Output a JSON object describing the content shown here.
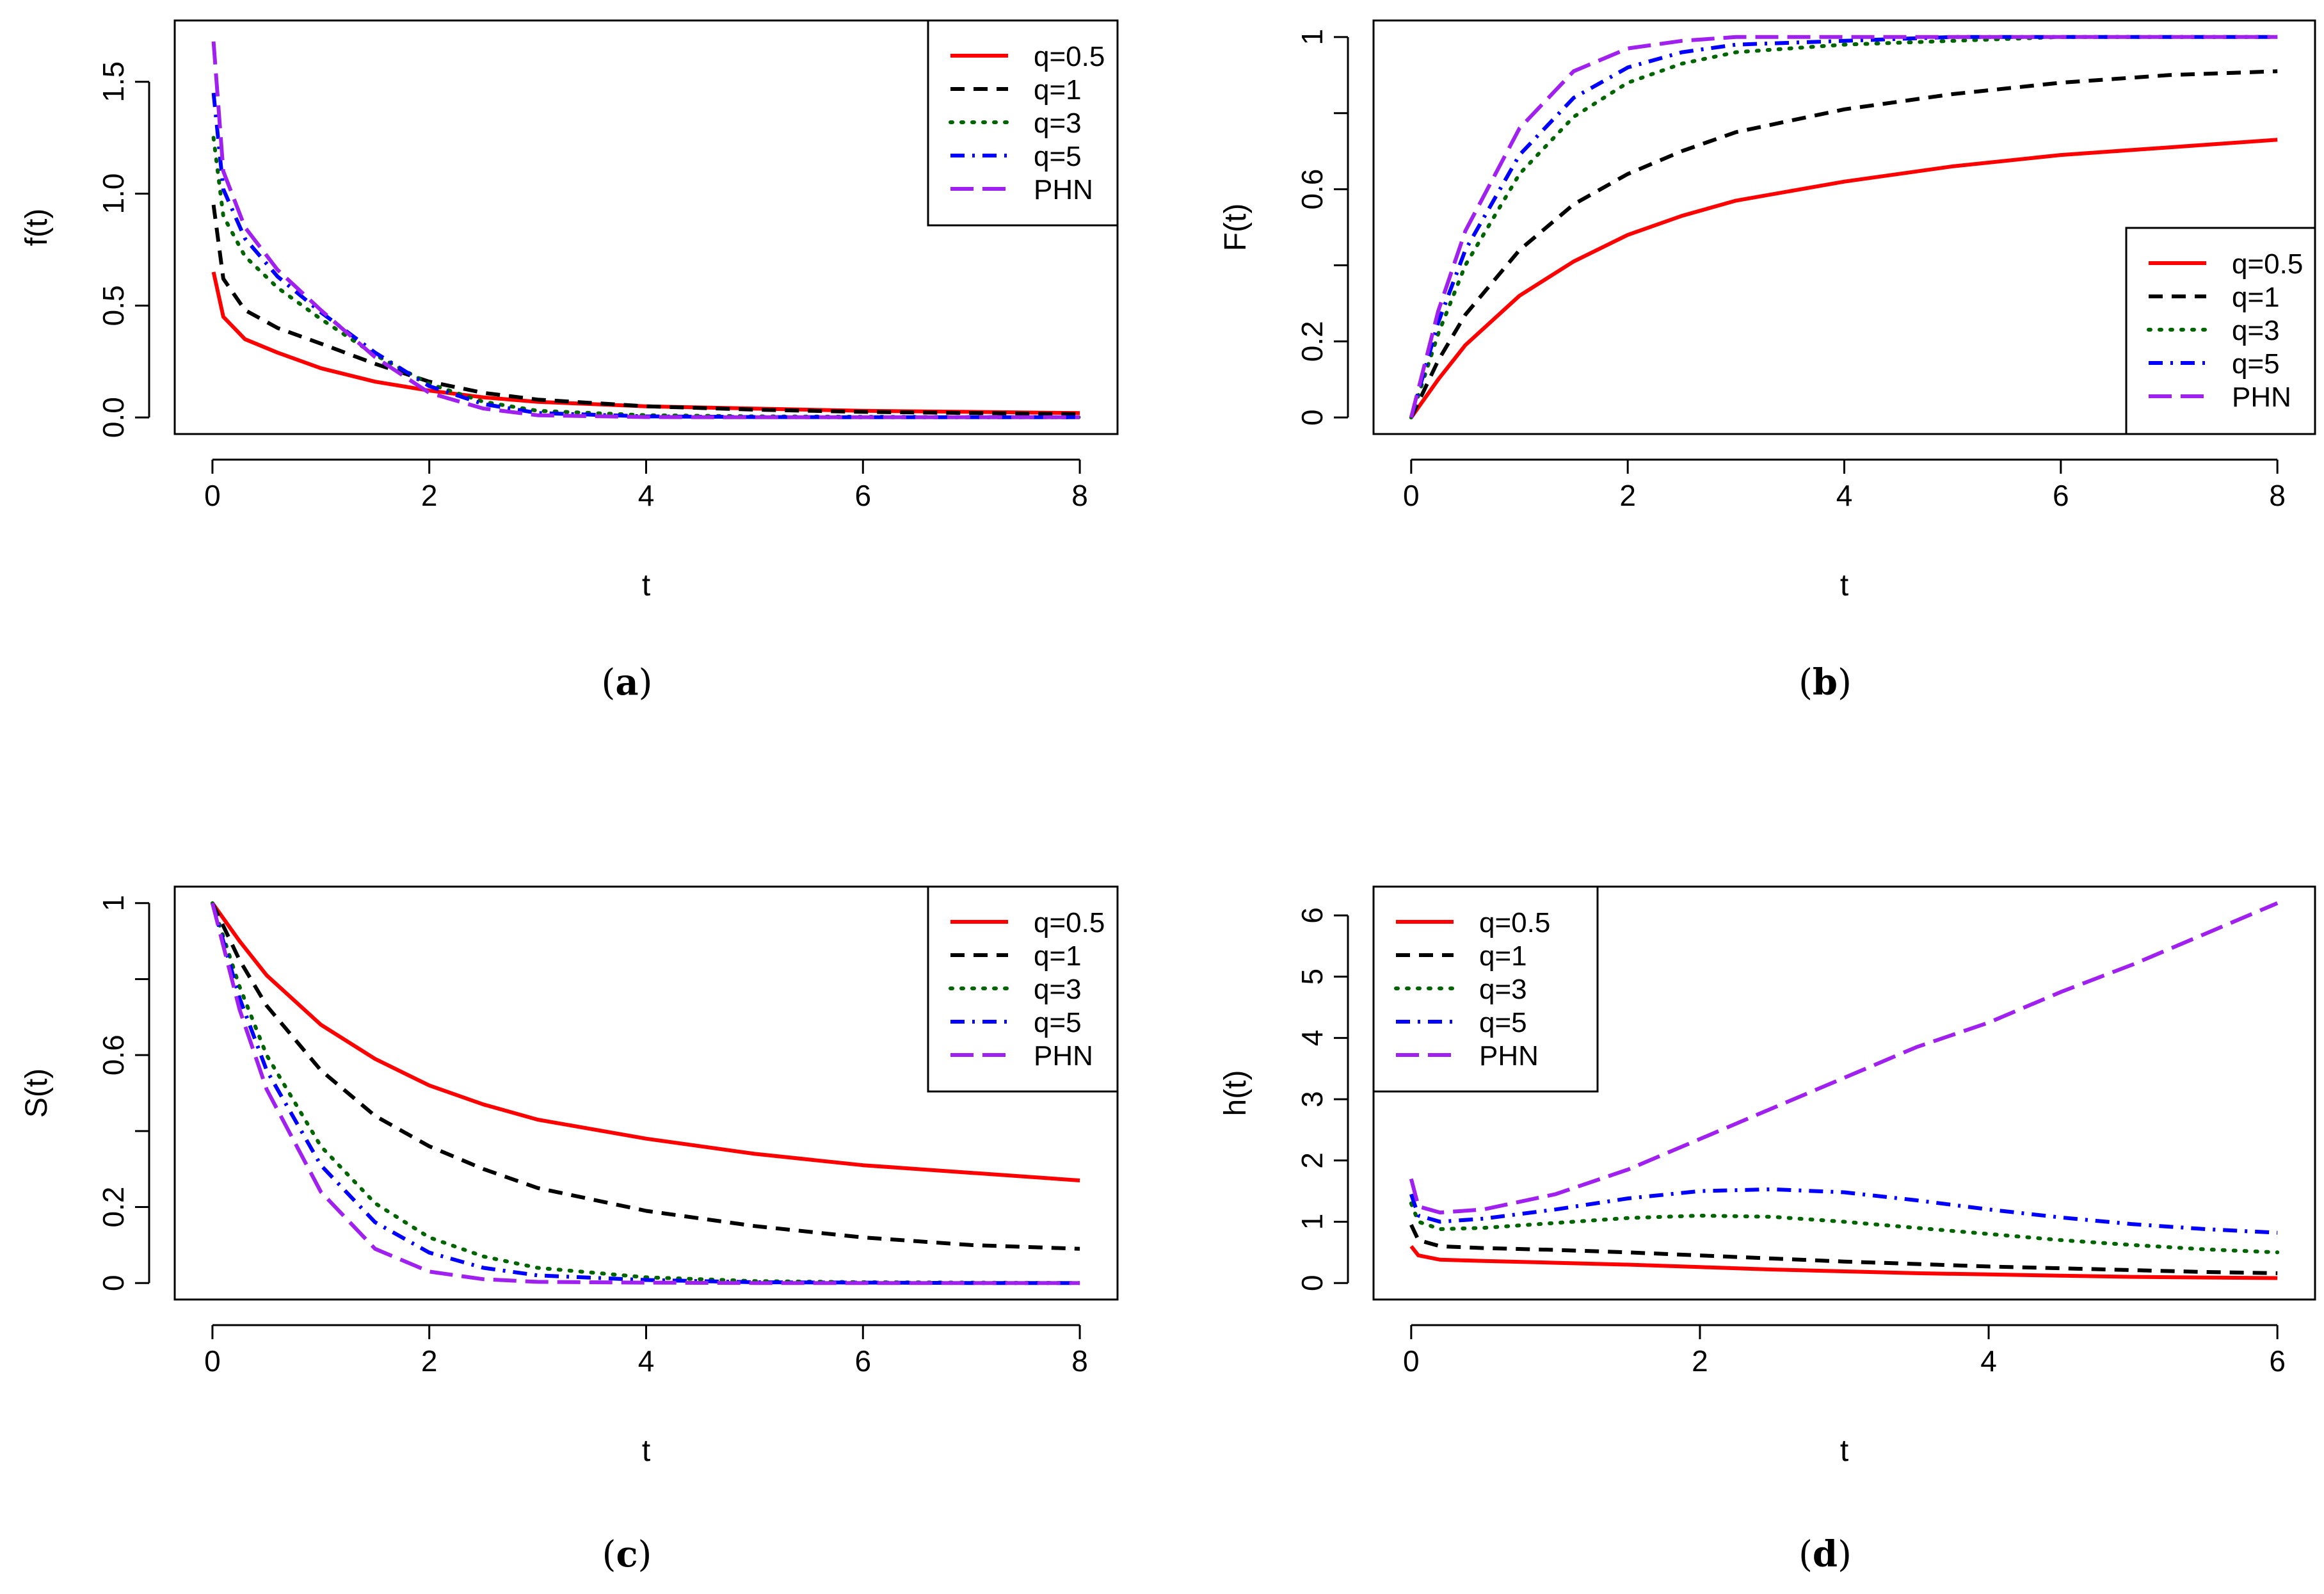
{
  "chart_data": [
    {
      "type": "line",
      "panel": "a",
      "caption_letter": "a",
      "ylabel": "f(t)",
      "xlabel": "t",
      "xlim": [
        0,
        8
      ],
      "ylim": [
        0,
        1.7
      ],
      "xticks": [
        "0",
        "2",
        "4",
        "6",
        "8"
      ],
      "yticks": [
        "0.0",
        "0.5",
        "1.0",
        "1.5"
      ],
      "legend_position": "top-right",
      "x": [
        0.01,
        0.1,
        0.3,
        0.6,
        1,
        1.5,
        2,
        2.5,
        3,
        4,
        5,
        6,
        7,
        8
      ],
      "series": [
        {
          "name": "q=0.5",
          "values": [
            0.65,
            0.45,
            0.35,
            0.29,
            0.22,
            0.16,
            0.12,
            0.09,
            0.07,
            0.05,
            0.04,
            0.03,
            0.025,
            0.02
          ]
        },
        {
          "name": "q=1",
          "values": [
            0.95,
            0.62,
            0.48,
            0.4,
            0.33,
            0.24,
            0.16,
            0.11,
            0.08,
            0.05,
            0.035,
            0.025,
            0.02,
            0.015
          ]
        },
        {
          "name": "q=3",
          "values": [
            1.25,
            0.9,
            0.72,
            0.58,
            0.44,
            0.28,
            0.15,
            0.07,
            0.03,
            0.01,
            0.005,
            0.003,
            0.002,
            0.001
          ]
        },
        {
          "name": "q=5",
          "values": [
            1.45,
            1.02,
            0.8,
            0.63,
            0.47,
            0.29,
            0.14,
            0.06,
            0.02,
            0.005,
            0.002,
            0.001,
            0.001,
            0.001
          ]
        },
        {
          "name": "PHN",
          "values": [
            1.68,
            1.1,
            0.85,
            0.66,
            0.48,
            0.27,
            0.11,
            0.04,
            0.01,
            0.002,
            0.001,
            0.001,
            0.001,
            0.001
          ]
        }
      ]
    },
    {
      "type": "line",
      "panel": "b",
      "caption_letter": "b",
      "ylabel": "F(t)",
      "xlabel": "t",
      "xlim": [
        0,
        8
      ],
      "ylim": [
        0,
        1
      ],
      "xticks": [
        "0",
        "2",
        "4",
        "6",
        "8"
      ],
      "yticks": [
        "0",
        "0.2",
        "0.6",
        "1"
      ],
      "ytick_values": [
        0,
        0.2,
        0.6,
        1
      ],
      "ytick_marks": [
        0,
        0.2,
        0.4,
        0.6,
        0.8,
        1
      ],
      "legend_position": "bottom-right",
      "x": [
        0,
        0.25,
        0.5,
        1,
        1.5,
        2,
        2.5,
        3,
        4,
        5,
        6,
        7,
        8
      ],
      "series": [
        {
          "name": "q=0.5",
          "values": [
            0,
            0.1,
            0.19,
            0.32,
            0.41,
            0.48,
            0.53,
            0.57,
            0.62,
            0.66,
            0.69,
            0.71,
            0.73
          ]
        },
        {
          "name": "q=1",
          "values": [
            0,
            0.15,
            0.27,
            0.44,
            0.56,
            0.64,
            0.7,
            0.75,
            0.81,
            0.85,
            0.88,
            0.9,
            0.91
          ]
        },
        {
          "name": "q=3",
          "values": [
            0,
            0.22,
            0.4,
            0.64,
            0.79,
            0.88,
            0.93,
            0.96,
            0.98,
            0.99,
            1.0,
            1.0,
            1.0
          ]
        },
        {
          "name": "q=5",
          "values": [
            0,
            0.25,
            0.44,
            0.69,
            0.84,
            0.92,
            0.96,
            0.98,
            0.99,
            1.0,
            1.0,
            1.0,
            1.0
          ]
        },
        {
          "name": "PHN",
          "values": [
            0,
            0.28,
            0.49,
            0.76,
            0.91,
            0.97,
            0.99,
            1.0,
            1.0,
            1.0,
            1.0,
            1.0,
            1.0
          ]
        }
      ]
    },
    {
      "type": "line",
      "panel": "c",
      "caption_letter": "c",
      "ylabel": "S(t)",
      "xlabel": "t",
      "xlim": [
        0,
        8
      ],
      "ylim": [
        0,
        1
      ],
      "xticks": [
        "0",
        "2",
        "4",
        "6",
        "8"
      ],
      "yticks": [
        "0",
        "0.2",
        "0.6",
        "1"
      ],
      "ytick_values": [
        0,
        0.2,
        0.6,
        1
      ],
      "ytick_marks": [
        0,
        0.2,
        0.4,
        0.6,
        0.8,
        1
      ],
      "legend_position": "top-right",
      "x": [
        0,
        0.25,
        0.5,
        1,
        1.5,
        2,
        2.5,
        3,
        4,
        5,
        6,
        7,
        8
      ],
      "series": [
        {
          "name": "q=0.5",
          "values": [
            1,
            0.9,
            0.81,
            0.68,
            0.59,
            0.52,
            0.47,
            0.43,
            0.38,
            0.34,
            0.31,
            0.29,
            0.27
          ]
        },
        {
          "name": "q=1",
          "values": [
            1,
            0.85,
            0.73,
            0.56,
            0.44,
            0.36,
            0.3,
            0.25,
            0.19,
            0.15,
            0.12,
            0.1,
            0.09
          ]
        },
        {
          "name": "q=3",
          "values": [
            1,
            0.78,
            0.6,
            0.36,
            0.21,
            0.12,
            0.07,
            0.04,
            0.015,
            0.005,
            0.002,
            0.001,
            0.0
          ]
        },
        {
          "name": "q=5",
          "values": [
            1,
            0.75,
            0.56,
            0.31,
            0.16,
            0.08,
            0.04,
            0.02,
            0.008,
            0.002,
            0.001,
            0.0,
            0.0
          ]
        },
        {
          "name": "PHN",
          "values": [
            1,
            0.72,
            0.51,
            0.24,
            0.09,
            0.03,
            0.01,
            0.003,
            0.001,
            0.0,
            0.0,
            0.0,
            0.0
          ]
        }
      ]
    },
    {
      "type": "line",
      "panel": "d",
      "caption_letter": "d",
      "ylabel": "h(t)",
      "xlabel": "t",
      "xlim": [
        0,
        6
      ],
      "ylim": [
        0,
        6.2
      ],
      "xticks": [
        "0",
        "2",
        "4",
        "6"
      ],
      "yticks": [
        "0",
        "1",
        "2",
        "3",
        "4",
        "5",
        "6"
      ],
      "legend_position": "top-left",
      "x": [
        0.0,
        0.05,
        0.2,
        0.5,
        1,
        1.5,
        2,
        2.5,
        3,
        3.5,
        4,
        4.5,
        5,
        5.5,
        6
      ],
      "series": [
        {
          "name": "q=0.5",
          "values": [
            0.6,
            0.45,
            0.38,
            0.36,
            0.33,
            0.3,
            0.26,
            0.22,
            0.19,
            0.16,
            0.14,
            0.12,
            0.1,
            0.09,
            0.08
          ]
        },
        {
          "name": "q=1",
          "values": [
            0.95,
            0.7,
            0.6,
            0.57,
            0.54,
            0.5,
            0.45,
            0.4,
            0.35,
            0.31,
            0.27,
            0.24,
            0.21,
            0.18,
            0.16
          ]
        },
        {
          "name": "q=3",
          "values": [
            1.3,
            1.0,
            0.88,
            0.9,
            0.98,
            1.06,
            1.1,
            1.08,
            1.0,
            0.9,
            0.8,
            0.7,
            0.62,
            0.55,
            0.5
          ]
        },
        {
          "name": "q=5",
          "values": [
            1.45,
            1.1,
            1.0,
            1.05,
            1.2,
            1.38,
            1.5,
            1.53,
            1.48,
            1.35,
            1.2,
            1.07,
            0.96,
            0.88,
            0.82
          ]
        },
        {
          "name": "PHN",
          "values": [
            1.7,
            1.25,
            1.15,
            1.2,
            1.45,
            1.85,
            2.35,
            2.85,
            3.35,
            3.85,
            4.25,
            4.75,
            5.2,
            5.7,
            6.2
          ]
        }
      ]
    }
  ]
}
